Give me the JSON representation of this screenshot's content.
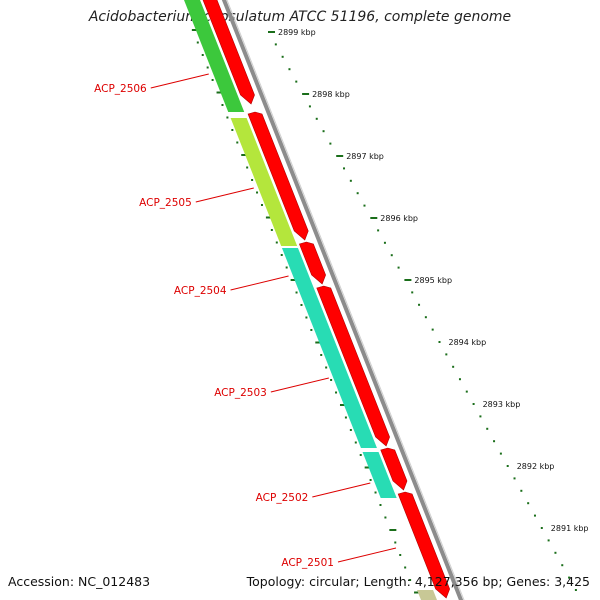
{
  "title": "Acidobacterium capsulatum ATCC 51196, complete genome",
  "footer": {
    "accession": "Accession: NC_012483",
    "summary": "Topology: circular; Length: 4,127,356 bp; Genes: 3,425"
  },
  "colors": {
    "cds_forward": "#ff0000",
    "backbone": "#8c8c8c",
    "gene_label": "#dd0000",
    "tick": "#1a6e1a",
    "cog_green": "#3cc83c",
    "cog_yellowgreen": "#b4e63c",
    "cog_teal": "#28dcb4"
  },
  "ticks": [
    "2899 kbp",
    "2898 kbp",
    "2897 kbp",
    "2896 kbp",
    "2895 kbp",
    "2894 kbp",
    "2893 kbp",
    "2892 kbp",
    "2891 kbp"
  ],
  "genes": [
    "ACP_2506",
    "ACP_2505",
    "ACP_2504",
    "ACP_2503",
    "ACP_2502",
    "ACP_2501"
  ]
}
